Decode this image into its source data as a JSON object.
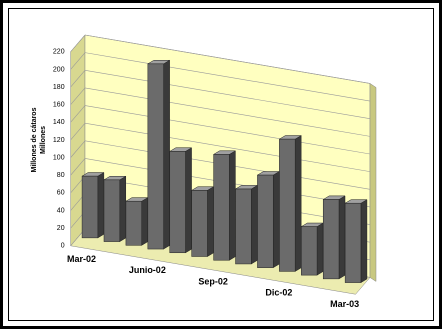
{
  "chart_data": {
    "type": "bar3d",
    "y_label": [
      "Millones de cátaros",
      "Millones"
    ],
    "categories": [
      "Mar-02",
      null,
      null,
      "Junio-02",
      null,
      null,
      "Sep-02",
      null,
      null,
      "Dic-02",
      null,
      null,
      "Mar-03"
    ],
    "values": [
      70,
      70,
      50,
      210,
      115,
      75,
      120,
      85,
      105,
      150,
      55,
      90,
      90
    ],
    "color": "#6b6b6b",
    "wall_color": "#ffffc0",
    "ylim": [
      0,
      220
    ],
    "yticks": [
      0,
      20,
      40,
      60,
      80,
      100,
      120,
      140,
      160,
      180,
      200,
      220
    ],
    "grid": true
  }
}
